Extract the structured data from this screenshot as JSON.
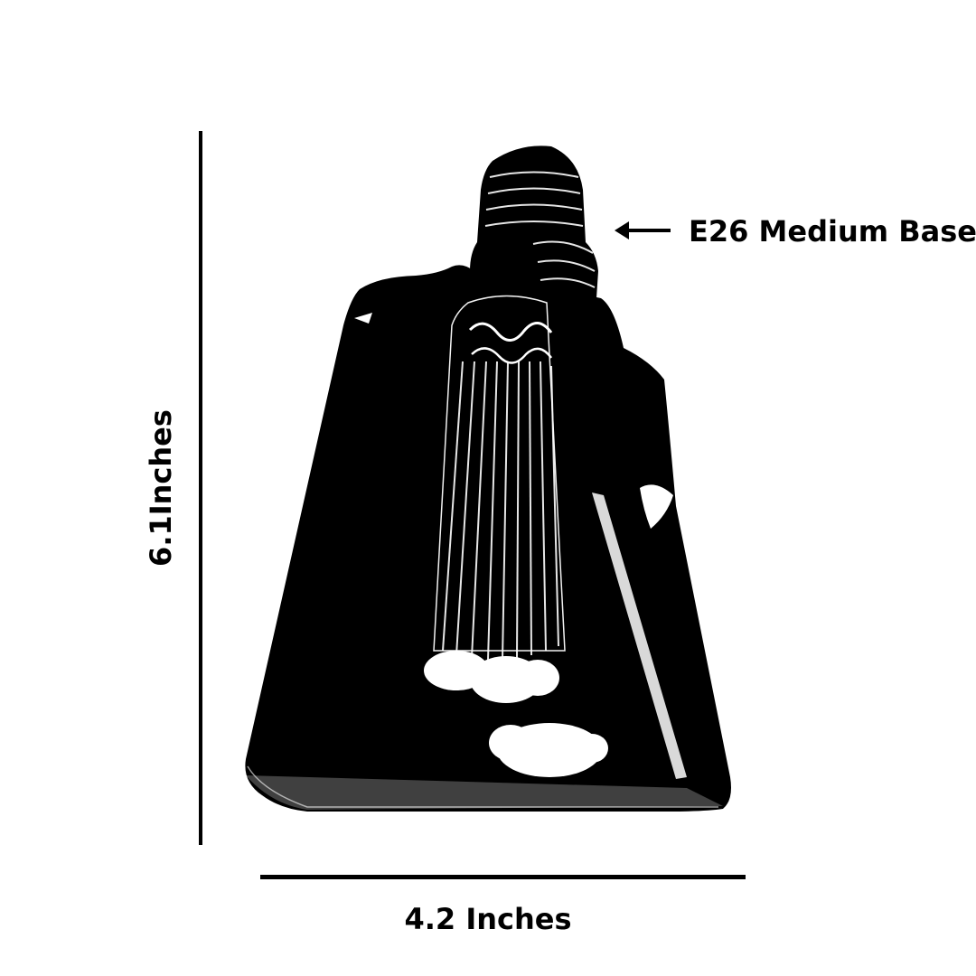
{
  "product_image": {
    "icon": "edison-triangle-bulb",
    "colors": {
      "bulb": "#000000",
      "filament": "#ffffff",
      "background": "#ffffff"
    }
  },
  "dimensions": {
    "height_label": "6.1Inches",
    "width_label": "4.2 Inches"
  },
  "callout": {
    "label": "E26 Medium Base",
    "icon": "arrow-left-icon"
  }
}
